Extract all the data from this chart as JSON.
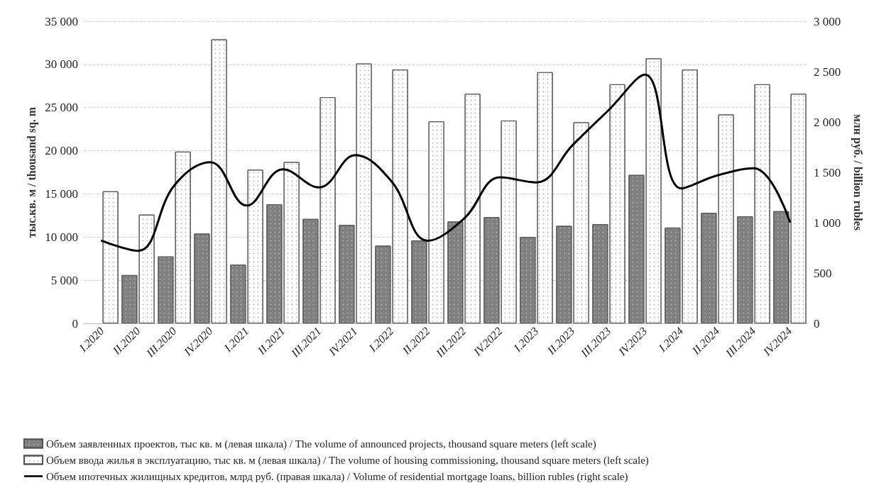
{
  "chart_data": {
    "type": "bar",
    "categories": [
      "I.2020",
      "II.2020",
      "III.2020",
      "IV.2020",
      "I.2021",
      "II.2021",
      "III.2021",
      "IV.2021",
      "I.2022",
      "II.2022",
      "III.2022",
      "IV.2022",
      "I.2023",
      "II.2023",
      "III.2023",
      "IV.2023",
      "I.2024",
      "II.2024",
      "III.2024",
      "IV.2024"
    ],
    "ylabel": "тыс.кв. м / thousand sq. m",
    "y2label": "млн руб. / billion rubles",
    "series": [
      {
        "name": "Объем заявленных проектов, тыс кв. м (левая шкала) / The volume of announced projects, thousand square meters (left scale)",
        "color": "#808080",
        "values": [
          null,
          5600,
          7750,
          10400,
          6800,
          13800,
          12100,
          11400,
          9000,
          9600,
          11800,
          12300,
          10000,
          11300,
          11500,
          17200,
          11100,
          12800,
          12400,
          13000
        ]
      },
      {
        "name": "Объем ввода жилья в эксплуатацию, тыс кв. м (левая шкала) / The volume of housing commissioning, thousand square meters (left scale)",
        "color": "#ffffff",
        "values": [
          15300,
          12600,
          19900,
          32900,
          17800,
          18700,
          26200,
          30100,
          29400,
          23400,
          26600,
          23500,
          29100,
          23300,
          27700,
          30700,
          29400,
          24200,
          27700,
          26600
        ]
      },
      {
        "name": "Объем ипотечных жилищных кредитов, млрд руб. (правая шкала) / Volume of residential mortgage loans, billion rubles (right scale)",
        "type": "line",
        "axis": "y2",
        "color": "#000000",
        "values": [
          820,
          720,
          1370,
          1600,
          1170,
          1530,
          1350,
          1670,
          1410,
          820,
          1040,
          1450,
          1400,
          1770,
          2120,
          2470,
          1340,
          1470,
          1540,
          1010
        ]
      }
    ],
    "ylim": [
      0,
      35000
    ],
    "yticks": [
      0,
      {
        "value": 5000,
        "label": "5 000"
      },
      {
        "value": 10000,
        "label": "10 000"
      },
      {
        "value": 15000,
        "label": "15 000"
      },
      {
        "value": 20000,
        "label": "20 000"
      },
      {
        "value": 25000,
        "label": "25 000"
      },
      {
        "value": 30000,
        "label": "30 000"
      },
      {
        "value": 35000,
        "label": "35 000"
      }
    ],
    "y2lim": [
      0,
      3000
    ],
    "y2ticks": [
      0,
      500,
      {
        "value": 1000,
        "label": "1 000"
      },
      {
        "value": 1500,
        "label": "1 500"
      },
      {
        "value": 2000,
        "label": "2 000"
      },
      {
        "value": 2500,
        "label": "2 500"
      },
      {
        "value": 3000,
        "label": "3 000"
      }
    ],
    "grid": "y",
    "legend": "bottom",
    "marker": "none",
    "line_style": "solid"
  }
}
